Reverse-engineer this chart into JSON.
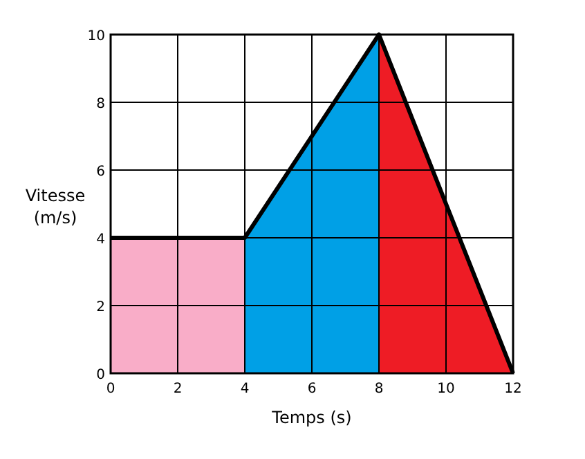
{
  "chart_data": {
    "type": "area",
    "xlabel": "Temps (s)",
    "ylabel": "Vitesse (m/s)",
    "xlim": [
      0,
      12
    ],
    "xticks": [
      0,
      2,
      4,
      6,
      8,
      10,
      12
    ],
    "ylim": [
      0,
      10
    ],
    "yticks": [
      0,
      2,
      4,
      6,
      8,
      10
    ],
    "grid": true,
    "series": [
      {
        "color": "#f9adc8",
        "x": [
          0,
          4
        ],
        "values": [
          4,
          4
        ]
      },
      {
        "color": "#00a0e6",
        "x": [
          4,
          8
        ],
        "values": [
          4,
          10
        ]
      },
      {
        "color": "#ee1c25",
        "x": [
          8,
          12
        ],
        "values": [
          10,
          0
        ]
      },
      {
        "type": "line",
        "color": "#000000",
        "x": [
          0,
          4,
          8,
          12
        ],
        "values": [
          4,
          4,
          10,
          0
        ]
      }
    ]
  }
}
